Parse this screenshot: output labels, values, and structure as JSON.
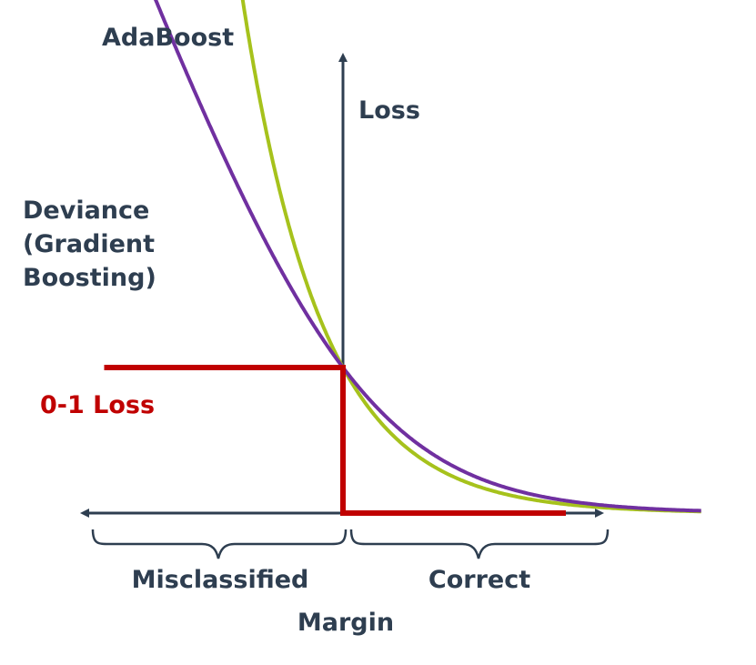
{
  "chart_data": {
    "type": "line",
    "title": "",
    "xlabel": "Margin",
    "ylabel": "Loss",
    "xlim": [
      -3,
      4
    ],
    "ylim": [
      0,
      4.2
    ],
    "grid": false,
    "legend": "none",
    "region_labels": {
      "negative": "Misclassified",
      "positive": "Correct"
    },
    "series": [
      {
        "name": "AdaBoost",
        "label_lines": [
          "AdaBoost"
        ],
        "function": "exp(-m)",
        "color": "#a6c21c",
        "x": [
          -1.4,
          -1.0,
          -0.5,
          0.0,
          0.5,
          1.0,
          1.5,
          2.0,
          2.5,
          3.0,
          3.5,
          4.5
        ],
        "y": [
          4.06,
          2.72,
          1.65,
          1.0,
          0.61,
          0.37,
          0.22,
          0.14,
          0.08,
          0.05,
          0.03,
          0.01
        ]
      },
      {
        "name": "Deviance (Gradient Boosting)",
        "label_lines": [
          "Deviance",
          "(Gradient",
          "Boosting)"
        ],
        "function": "log2(1+exp(-m))",
        "color": "#7030a0",
        "x": [
          -3.0,
          -2.5,
          -2.0,
          -1.5,
          -1.0,
          -0.5,
          0.0,
          0.5,
          1.0,
          1.5,
          2.0,
          2.5,
          3.0,
          3.5,
          4.5
        ],
        "y": [
          4.39,
          3.7,
          3.03,
          2.4,
          1.89,
          1.4,
          1.0,
          0.69,
          0.45,
          0.29,
          0.18,
          0.11,
          0.07,
          0.04,
          0.02
        ]
      },
      {
        "name": "0-1 Loss",
        "label_lines": [
          "0-1 Loss"
        ],
        "function": "step",
        "color": "#c00000",
        "x": [
          -3.0,
          0.0,
          0.0,
          2.8
        ],
        "y": [
          1.0,
          1.0,
          0.0,
          0.0
        ]
      }
    ]
  },
  "colors": {
    "axis": "#2e3e50",
    "text": "#2e3e50"
  }
}
